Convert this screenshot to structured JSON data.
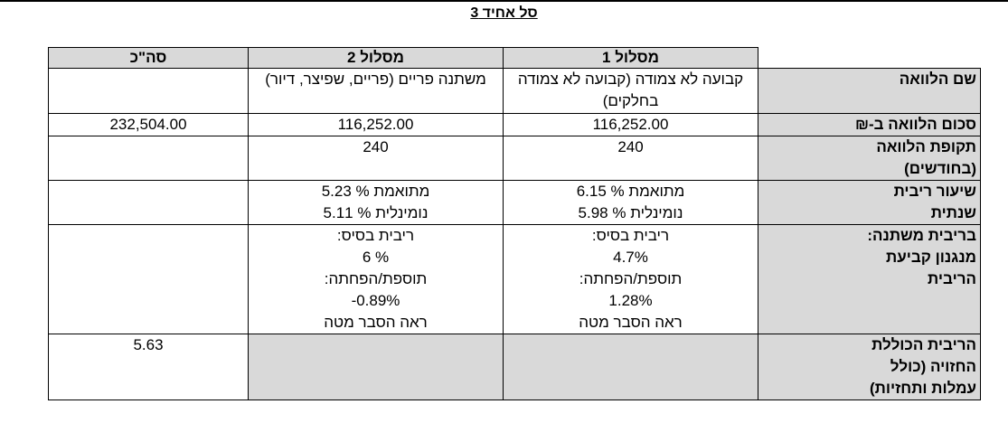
{
  "title": "סל אחיד 3",
  "columns": {
    "track1": "מסלול 1",
    "track2": "מסלול 2",
    "total": "סה\"כ"
  },
  "rows": {
    "loan_name": {
      "label": "שם הלוואה",
      "track1": "קבועה לא צמודה (קבועה לא צמודה בחלקים)",
      "track2": "משתנה פריים (פריים, שפיצר, דיור)",
      "total": ""
    },
    "loan_amount": {
      "label": "סכום הלוואה ב-₪",
      "track1": "116,252.00",
      "track2": "116,252.00",
      "total": "232,504.00"
    },
    "loan_period": {
      "label_line1": "תקופת הלוואה",
      "label_line2": "(בחודשים)",
      "track1": "240",
      "track2": "240",
      "total": ""
    },
    "annual_rate": {
      "label_line1": "שיעור ריבית",
      "label_line2": "שנתית",
      "track1_adjusted": "מתואמת % 6.15",
      "track1_nominal": "נומינלית % 5.98",
      "track2_adjusted": "מתואמת % 5.23",
      "track2_nominal": "נומינלית % 5.11",
      "total": ""
    },
    "variable_rate": {
      "label_line1": "בריבית משתנה:",
      "label_line2": "מנגנון קביעת",
      "label_line3": "הריבית",
      "base_label": "ריבית בסיס:",
      "margin_label": "תוספת/הפחתה:",
      "see_note": "ראה הסבר מטה",
      "track1_base": "4.7%",
      "track1_margin": "1.28%",
      "track2_base": "6 %",
      "track2_margin": "-0.89%",
      "total": ""
    },
    "expected_rate": {
      "label_line1": "הריבית הכוללת",
      "label_line2": "החזויה (כולל",
      "label_line3": "עמלות ותחזיות)",
      "total": "5.63"
    }
  }
}
